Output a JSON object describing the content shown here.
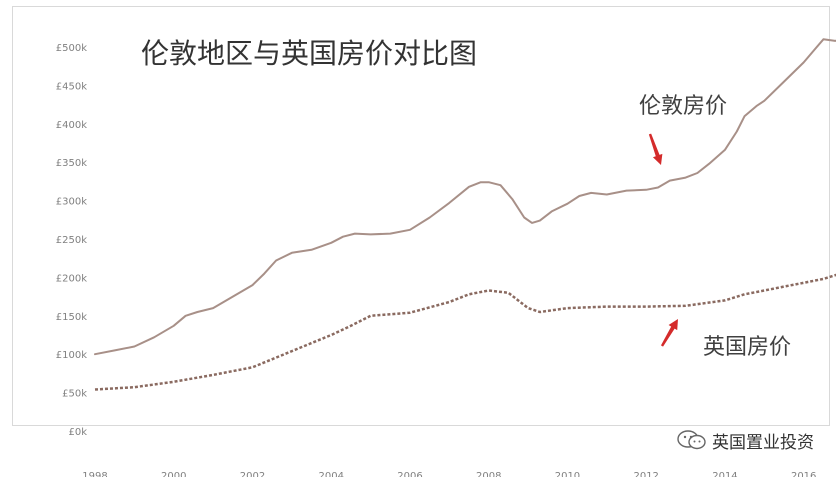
{
  "chart_data": {
    "type": "line",
    "title": "伦敦地区与英国房价对比图",
    "xlabel": "",
    "ylabel": "",
    "x_ticks": [
      "1998",
      "2000",
      "2002",
      "2004",
      "2006",
      "2008",
      "2010",
      "2012",
      "2014",
      "2016"
    ],
    "y_ticks": [
      "£0k",
      "£50k",
      "£100k",
      "£150k",
      "£200k",
      "£250k",
      "£300k",
      "£350k",
      "£400k",
      "£450k",
      "£500k"
    ],
    "xlim": [
      1998,
      2017.1
    ],
    "ylim": [
      0,
      500000
    ],
    "grid": false,
    "series": [
      {
        "name": "伦敦房价",
        "style": "solid",
        "color": "#a89088",
        "x": [
          1998.0,
          1998.5,
          1999.0,
          1999.5,
          2000.0,
          2000.3,
          2000.6,
          2001.0,
          2001.5,
          2002.0,
          2002.3,
          2002.6,
          2003.0,
          2003.5,
          2004.0,
          2004.3,
          2004.6,
          2005.0,
          2005.5,
          2006.0,
          2006.5,
          2007.0,
          2007.5,
          2007.8,
          2008.0,
          2008.3,
          2008.6,
          2008.9,
          2009.1,
          2009.3,
          2009.6,
          2010.0,
          2010.3,
          2010.6,
          2011.0,
          2011.5,
          2012.0,
          2012.3,
          2012.6,
          2013.0,
          2013.3,
          2013.6,
          2014.0,
          2014.3,
          2014.5,
          2014.8,
          2015.0,
          2015.5,
          2016.0,
          2016.3,
          2016.5,
          2016.8,
          2017.0,
          2017.1
        ],
        "y": [
          100000,
          105000,
          110000,
          122000,
          137000,
          150000,
          155000,
          160000,
          175000,
          190000,
          205000,
          222000,
          232000,
          236000,
          245000,
          253000,
          257000,
          256000,
          257000,
          262000,
          278000,
          297000,
          318000,
          324000,
          324000,
          320000,
          302000,
          278000,
          271000,
          274000,
          286000,
          296000,
          306000,
          310000,
          308000,
          313000,
          314000,
          317000,
          326000,
          330000,
          336000,
          348000,
          366000,
          390000,
          410000,
          423000,
          430000,
          455000,
          480000,
          498000,
          510000,
          508000,
          510000,
          515000
        ]
      },
      {
        "name": "英国房价",
        "style": "dotted",
        "color": "#8a6a60",
        "x": [
          1998.0,
          1999.0,
          2000.0,
          2001.0,
          2002.0,
          2003.0,
          2004.0,
          2004.5,
          2005.0,
          2006.0,
          2007.0,
          2007.5,
          2008.0,
          2008.5,
          2009.0,
          2009.3,
          2010.0,
          2011.0,
          2012.0,
          2013.0,
          2014.0,
          2014.5,
          2015.0,
          2015.5,
          2016.0,
          2016.5,
          2017.0,
          2017.1
        ],
        "y": [
          54000,
          57000,
          64000,
          73000,
          83000,
          104000,
          125000,
          137000,
          150000,
          154000,
          168000,
          178000,
          183000,
          180000,
          160000,
          155000,
          160000,
          162000,
          162000,
          163000,
          170000,
          178000,
          183000,
          188000,
          193000,
          198000,
          206000,
          210000
        ]
      }
    ],
    "annotations": [
      {
        "text": "伦敦房价",
        "target_series": "伦敦房价",
        "arrow_color": "#d42b2b"
      },
      {
        "text": "英国房价",
        "target_series": "英国房价",
        "arrow_color": "#d42b2b"
      }
    ]
  },
  "watermark": {
    "icon": "wechat-icon",
    "text": "英国置业投资"
  }
}
